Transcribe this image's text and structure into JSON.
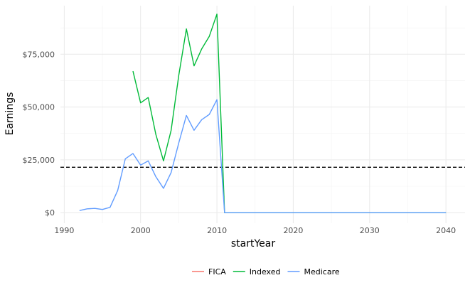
{
  "chart_data": {
    "type": "line",
    "title": "",
    "xlabel": "startYear",
    "ylabel": "Earnings",
    "xlim": [
      1989.5,
      2042.5
    ],
    "ylim": [
      -5000,
      98000
    ],
    "x_ticks": [
      1990,
      2000,
      2010,
      2020,
      2030,
      2040
    ],
    "x_tick_labels": [
      "1990",
      "2000",
      "2010",
      "2020",
      "2030",
      "2040"
    ],
    "y_ticks": [
      0,
      25000,
      50000,
      75000
    ],
    "y_tick_labels": [
      "$0",
      "$25,000",
      "$50,000",
      "$75,000"
    ],
    "grid": true,
    "legend_position": "bottom",
    "reference_line": {
      "orientation": "horizontal",
      "value": 21500,
      "style": "dashed",
      "color": "#000000"
    },
    "series": [
      {
        "name": "FICA",
        "color": "#F8766D",
        "x": [],
        "values": []
      },
      {
        "name": "Indexed",
        "color": "#00BA38",
        "x": [
          1999,
          2000,
          2001,
          2002,
          2003,
          2004,
          2005,
          2006,
          2007,
          2008,
          2009,
          2010,
          2011,
          2020,
          2030,
          2040
        ],
        "values": [
          67000,
          52000,
          54500,
          37000,
          24500,
          39000,
          65000,
          87000,
          69500,
          77500,
          83500,
          94000,
          0,
          0,
          0,
          0
        ]
      },
      {
        "name": "Medicare",
        "color": "#619CFF",
        "x": [
          1992,
          1993,
          1994,
          1995,
          1996,
          1997,
          1998,
          1999,
          2000,
          2001,
          2002,
          2003,
          2004,
          2005,
          2006,
          2007,
          2008,
          2009,
          2010,
          2011,
          2020,
          2030,
          2040
        ],
        "values": [
          1000,
          1800,
          2000,
          1500,
          2500,
          10500,
          25500,
          28000,
          22500,
          24500,
          17000,
          11500,
          19000,
          33000,
          46000,
          39000,
          44000,
          46500,
          53500,
          0,
          0,
          0,
          0
        ]
      }
    ]
  }
}
